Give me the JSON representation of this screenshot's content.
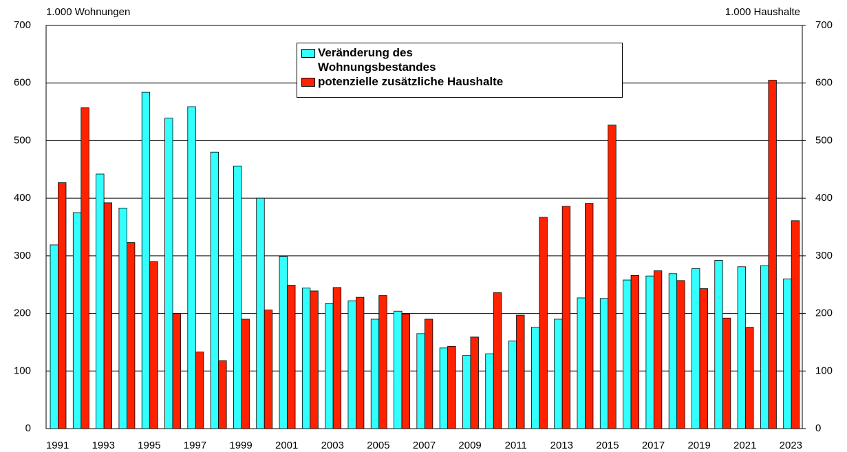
{
  "chart_data": {
    "type": "bar",
    "y_axis_label": "1.000 Wohnungen",
    "y2_axis_label": "1.000 Haushalte",
    "categories": [
      "1991",
      null,
      "1993",
      null,
      "1995",
      null,
      "1997",
      null,
      "1999",
      null,
      "2001",
      null,
      "2003",
      null,
      "2005",
      null,
      "2007",
      null,
      "2009",
      null,
      "2011",
      null,
      "2013",
      null,
      "2015",
      null,
      "2017",
      null,
      "2019",
      null,
      "2021",
      null,
      "2023"
    ],
    "series": [
      {
        "name": "Veränderung des Wohnungsbestandes",
        "color": "#33ffff",
        "values": [
          319,
          375,
          442,
          383,
          584,
          539,
          559,
          480,
          456,
          400,
          299,
          244,
          217,
          222,
          190,
          204,
          165,
          140,
          127,
          130,
          152,
          176,
          190,
          227,
          226,
          258,
          265,
          269,
          278,
          292,
          281,
          283,
          260
        ]
      },
      {
        "name": "potenzielle zusätzliche Haushalte",
        "color": "#ff2200",
        "axis": "y2",
        "values": [
          427,
          557,
          392,
          323,
          290,
          200,
          133,
          118,
          190,
          206,
          249,
          239,
          245,
          228,
          231,
          199,
          190,
          143,
          159,
          236,
          197,
          367,
          386,
          391,
          527,
          266,
          274,
          257,
          243,
          192,
          176,
          605,
          361
        ]
      }
    ],
    "ylim": [
      0,
      700
    ],
    "yticks": [
      0,
      100,
      200,
      300,
      400,
      500,
      600,
      700
    ],
    "y2lim": [
      0,
      700
    ],
    "y2ticks": [
      0,
      100,
      200,
      300,
      400,
      500,
      600,
      700
    ],
    "grid": true,
    "legend": "top"
  }
}
